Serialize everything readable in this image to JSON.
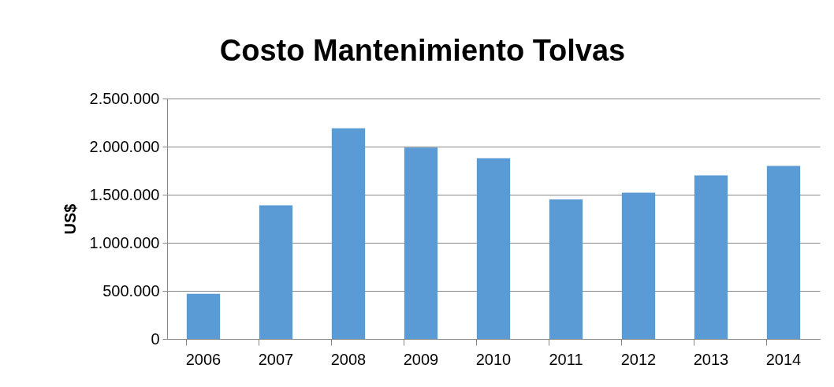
{
  "chart_data": {
    "type": "bar",
    "title": "Costo Mantenimiento Tolvas",
    "ylabel": "US$",
    "categories": [
      "2006",
      "2007",
      "2008",
      "2009",
      "2010",
      "2011",
      "2012",
      "2013",
      "2014"
    ],
    "values": [
      470000,
      1390000,
      2190000,
      1990000,
      1880000,
      1450000,
      1520000,
      1700000,
      1800000
    ],
    "color": "#5b9bd5",
    "ylim": [
      0,
      2500000
    ],
    "yticks": [
      {
        "value": 0,
        "label": "0"
      },
      {
        "value": 500000,
        "label": "500.000"
      },
      {
        "value": 1000000,
        "label": "1.000.000"
      },
      {
        "value": 1500000,
        "label": "1.500.000"
      },
      {
        "value": 2000000,
        "label": "2.000.000"
      },
      {
        "value": 2500000,
        "label": "2.500.000"
      }
    ],
    "grid": "y"
  }
}
